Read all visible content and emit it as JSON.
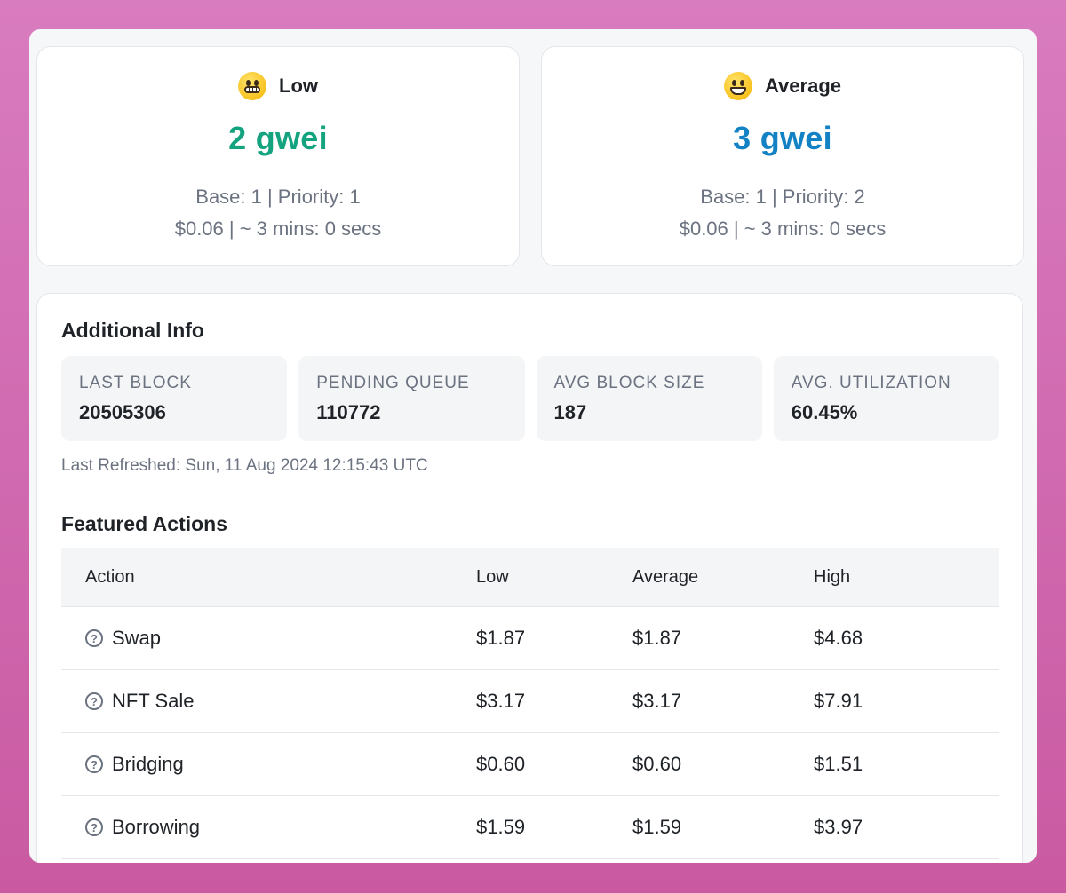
{
  "gas": {
    "low": {
      "label": "Low",
      "emoji": "grimacing-face-icon",
      "price": "2 gwei",
      "detail1": "Base: 1 | Priority: 1",
      "detail2": "$0.06 | ~ 3 mins: 0 secs",
      "color": "#14a37f"
    },
    "average": {
      "label": "Average",
      "emoji": "grinning-face-icon",
      "price": "3 gwei",
      "detail1": "Base: 1 | Priority: 2",
      "detail2": "$0.06 | ~ 3 mins: 0 secs",
      "color": "#1282c4"
    }
  },
  "info": {
    "title": "Additional Info",
    "stats": [
      {
        "label": "LAST BLOCK",
        "value": "20505306"
      },
      {
        "label": "PENDING QUEUE",
        "value": "110772"
      },
      {
        "label": "AVG BLOCK SIZE",
        "value": "187"
      },
      {
        "label": "AVG. UTILIZATION",
        "value": "60.45%"
      }
    ],
    "refreshed": "Last Refreshed: Sun, 11 Aug 2024 12:15:43 UTC"
  },
  "featured": {
    "title": "Featured Actions",
    "headers": [
      "Action",
      "Low",
      "Average",
      "High"
    ],
    "rows": [
      {
        "action": "Swap",
        "low": "$1.87",
        "average": "$1.87",
        "high": "$4.68"
      },
      {
        "action": "NFT Sale",
        "low": "$3.17",
        "average": "$3.17",
        "high": "$7.91"
      },
      {
        "action": "Bridging",
        "low": "$0.60",
        "average": "$0.60",
        "high": "$1.51"
      },
      {
        "action": "Borrowing",
        "low": "$1.59",
        "average": "$1.59",
        "high": "$3.97"
      }
    ],
    "help_icon": "question-circle-icon"
  },
  "colors": {
    "background": "#d97bbf",
    "low_price": "#14a37f",
    "average_price": "#1282c4"
  }
}
